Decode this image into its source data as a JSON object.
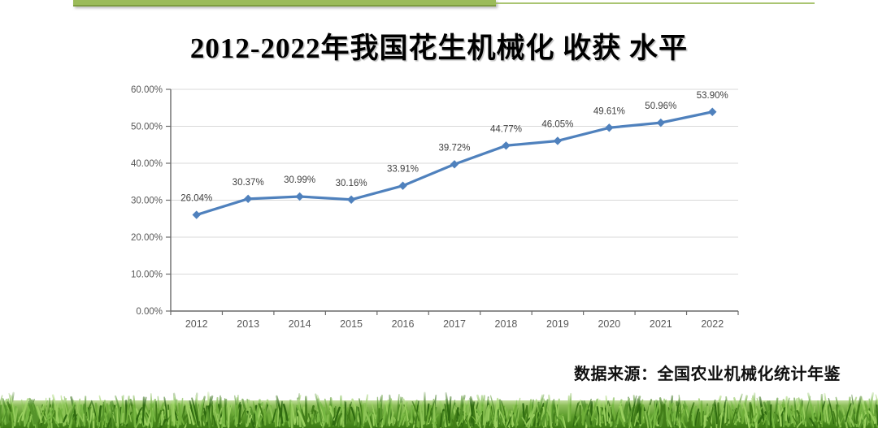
{
  "page": {
    "title": "2012-2022年我国花生机械化 收获 水平",
    "source_note": "数据来源：全国农业机械化统计年鉴"
  },
  "colors": {
    "accent_bar": "#9bbb59",
    "accent_bar_edge": "#7e9d3f",
    "gridline": "#d9d9d9",
    "axis": "#6a6a6a",
    "axis_label": "#595959",
    "data_label": "#3f3f3f"
  },
  "chart_data": {
    "type": "line",
    "title": "2012-2022年我国花生机械化 收获 水平",
    "categories": [
      "2012",
      "2013",
      "2014",
      "2015",
      "2016",
      "2017",
      "2018",
      "2019",
      "2020",
      "2021",
      "2022"
    ],
    "values": [
      26.04,
      30.37,
      30.99,
      30.16,
      33.91,
      39.72,
      44.77,
      46.05,
      49.61,
      50.96,
      53.9
    ],
    "data_labels": [
      "26.04%",
      "30.37%",
      "30.99%",
      "30.16%",
      "33.91%",
      "39.72%",
      "44.77%",
      "46.05%",
      "49.61%",
      "50.96%",
      "53.90%"
    ],
    "series_name": "花生机械化收获水平",
    "series_color": "#4f81bd",
    "marker": "diamond",
    "xlabel": "",
    "ylabel": "",
    "ylim": [
      0,
      60
    ],
    "y_step": 10,
    "y_tick_labels": [
      "0.00%",
      "10.00%",
      "20.00%",
      "30.00%",
      "40.00%",
      "50.00%",
      "60.00%"
    ],
    "grid": true,
    "legend": "none"
  }
}
